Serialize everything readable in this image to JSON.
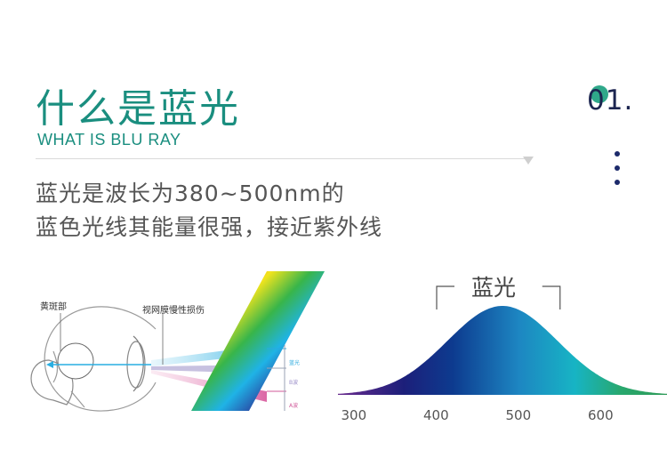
{
  "header": {
    "title": "什么是蓝光",
    "subtitle": "WHAT IS BLU RAY",
    "section_number": "01."
  },
  "description": {
    "line1": "蓝光是波长为380~500nm的",
    "line2": "蓝色光线其能量很强，接近紫外线"
  },
  "eye_diagram": {
    "macula_label": "黄斑部",
    "retina_label": "视网膜慢性损伤",
    "band_labels": [
      "蓝光",
      "B波",
      "A波"
    ],
    "band_colors": [
      "#2aaadf",
      "#9b8fc9",
      "#d05a9a"
    ]
  },
  "chart_data": {
    "type": "area",
    "title": "蓝光",
    "x_ticks": [
      300,
      400,
      500,
      600
    ],
    "xlim": [
      280,
      680
    ],
    "bracket_range": [
      400,
      550
    ],
    "peak": 480,
    "xlabel": "",
    "ylabel": "",
    "grid": false
  },
  "colors": {
    "accent": "#1a8e7f",
    "navy": "#1c2550"
  }
}
